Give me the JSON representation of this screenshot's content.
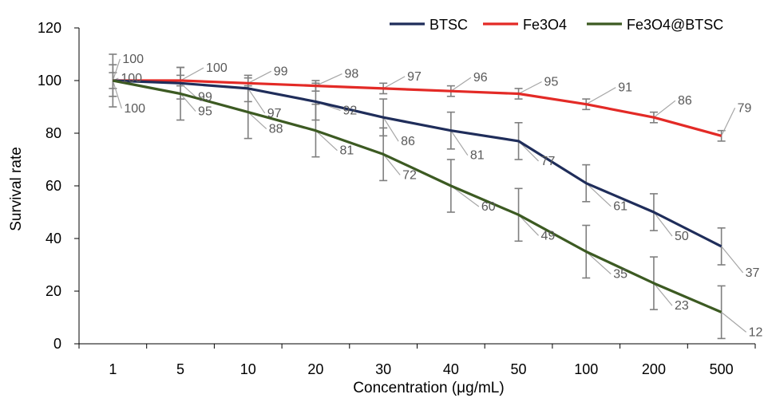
{
  "chart_data": {
    "type": "line",
    "title": "",
    "xlabel": "Concentration (μg/mL)",
    "ylabel": "Survival rate",
    "categories": [
      "1",
      "5",
      "10",
      "20",
      "30",
      "40",
      "50",
      "100",
      "200",
      "500"
    ],
    "ylim": [
      0,
      120
    ],
    "yticks": [
      "0",
      "20",
      "40",
      "60",
      "80",
      "100",
      "120"
    ],
    "legend_position": "top-right",
    "series": [
      {
        "name": "BTSC",
        "color": "#1f2d5a",
        "values": [
          100,
          99,
          97,
          92,
          86,
          81,
          77,
          61,
          50,
          37
        ],
        "errors": [
          10,
          6,
          5,
          7,
          7,
          7,
          7,
          7,
          7,
          7
        ],
        "labels": [
          "100",
          "99",
          "97",
          "92",
          "86",
          "81",
          "77",
          "61",
          "50",
          "37"
        ]
      },
      {
        "name": "Fe3O4",
        "color": "#e32a26",
        "values": [
          100,
          100,
          99,
          98,
          97,
          96,
          95,
          91,
          86,
          79
        ],
        "errors": [
          3,
          2,
          2,
          2,
          2,
          2,
          2,
          2,
          2,
          2
        ],
        "labels": [
          "100",
          "100",
          "99",
          "98",
          "97",
          "96",
          "95",
          "91",
          "86",
          "79"
        ]
      },
      {
        "name": "Fe3O4@BTSC",
        "color": "#3c5a22",
        "values": [
          100,
          95,
          88,
          81,
          72,
          60,
          49,
          35,
          23,
          12
        ],
        "errors": [
          6,
          10,
          10,
          10,
          10,
          10,
          10,
          10,
          10,
          10
        ],
        "labels": [
          "100",
          "95",
          "88",
          "81",
          "72",
          "60",
          "49",
          "35",
          "23",
          "12"
        ]
      }
    ]
  }
}
